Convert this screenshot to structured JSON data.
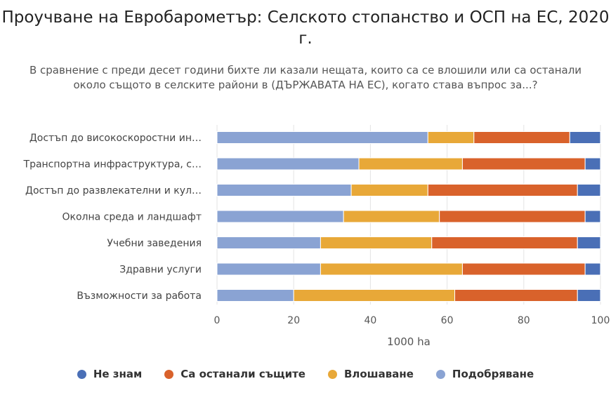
{
  "chart_data": {
    "type": "bar",
    "orientation": "horizontal",
    "stacked": true,
    "title": "Проучване на Евробарометър: Селското стопанство и ОСП на ЕС, 2020 г.",
    "subtitle": "В сравнение с преди десет години бихте ли казали нещата, които са се влошили или са останали около същото в селските райони в (ДЪРЖАВАТА НА ЕС), когато става въпрос за...?",
    "xlabel": "1000 ha",
    "ylabel": "",
    "xlim": [
      0,
      100
    ],
    "xticks": [
      "0",
      "20",
      "40",
      "60",
      "80",
      "100"
    ],
    "grid": true,
    "legend_position": "bottom",
    "categories": [
      "Достъп до високоскоростни ин…",
      "Транспортна инфраструктура, с…",
      "Достъп до развлекателни и кул…",
      "Околна среда и ландшафт",
      "Учебни заведения",
      "Здравни услуги",
      "Възможности за работа"
    ],
    "series": [
      {
        "name": "Подобряване",
        "color": "#8aa3d3",
        "values": [
          55,
          37,
          35,
          33,
          27,
          27,
          20
        ]
      },
      {
        "name": "Влошаване",
        "color": "#e8a838",
        "values": [
          12,
          27,
          20,
          25,
          29,
          37,
          42
        ]
      },
      {
        "name": "Са останали същите",
        "color": "#d9622b",
        "values": [
          25,
          32,
          39,
          38,
          38,
          32,
          32
        ]
      },
      {
        "name": "Не знам",
        "color": "#4a6fb6",
        "values": [
          8,
          4,
          6,
          4,
          6,
          4,
          6
        ]
      }
    ],
    "legend_order": [
      "Не знам",
      "Са останали същите",
      "Влошаване",
      "Подобряване"
    ]
  }
}
